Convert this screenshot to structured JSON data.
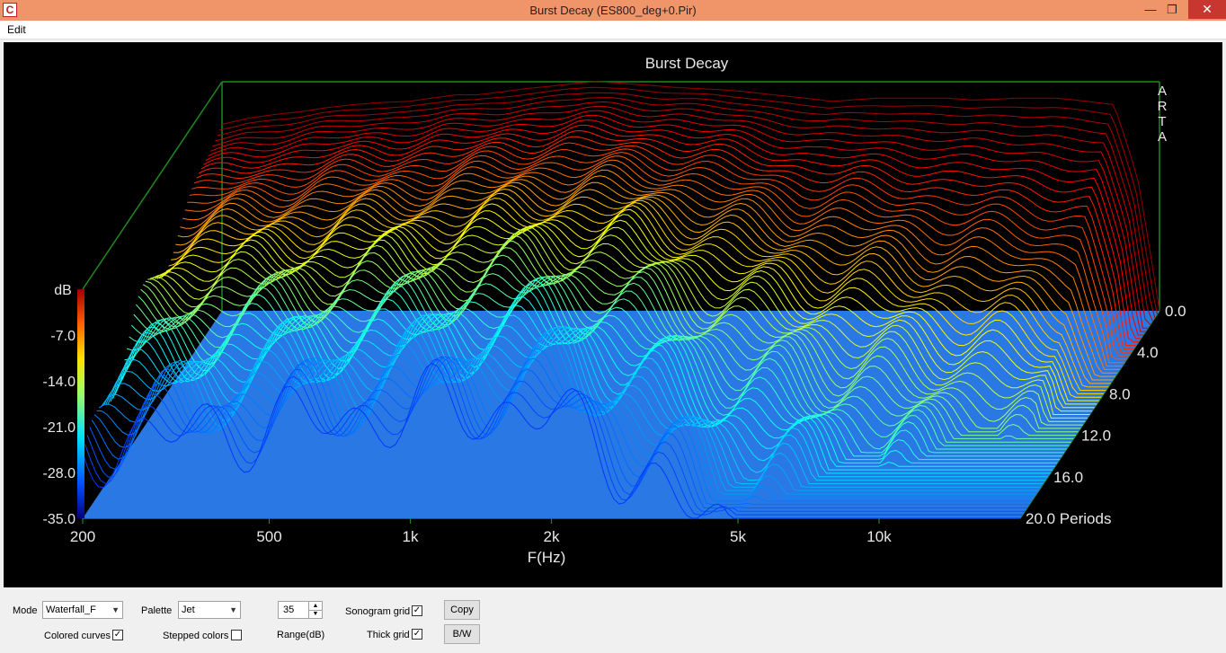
{
  "window": {
    "title": "Burst Decay  (ES800_deg+0.Pir)",
    "app_icon": "arta-app-icon"
  },
  "menu": {
    "items": [
      {
        "label": "Edit"
      }
    ]
  },
  "chart_data": {
    "type": "waterfall",
    "title": "Burst Decay",
    "watermark": [
      "A",
      "R",
      "T",
      "A"
    ],
    "xlabel": "F(Hz)",
    "ylabel": "dB",
    "zlabel_unit": "Periods",
    "x_scale": "log",
    "x_range": [
      200,
      20000
    ],
    "x_ticks": [
      "200",
      "500",
      "1k",
      "2k",
      "5k",
      "10k"
    ],
    "x_tick_values": [
      200,
      500,
      1000,
      2000,
      5000,
      10000
    ],
    "y_range": [
      -35,
      0
    ],
    "y_ticks": [
      "-7.0",
      "-14.0",
      "-21.0",
      "-28.0",
      "-35.0"
    ],
    "y_tick_values": [
      -7,
      -14,
      -21,
      -28,
      -35
    ],
    "z_range": [
      0,
      20
    ],
    "z_ticks": [
      "0.0",
      "4.0",
      "8.0",
      "12.0",
      "16.0",
      "20.0 Periods"
    ],
    "z_tick_values": [
      0,
      4,
      8,
      12,
      16,
      20
    ],
    "palette": "Jet",
    "colors": {
      "background": "#000000",
      "box": "#1e8a1e",
      "floor": "#2a78e4",
      "text": "#e8e8e8"
    },
    "front_response": {
      "freq": [
        200,
        230,
        260,
        300,
        330,
        380,
        430,
        500,
        560,
        630,
        700,
        800,
        900,
        1000,
        1120,
        1250,
        1400,
        1600,
        1800,
        2000,
        2300,
        2600,
        3000,
        3500,
        4000,
        5000,
        6000,
        7000,
        8000,
        10000,
        12000,
        14000,
        16000,
        18000,
        20000
      ],
      "db": [
        -6.5,
        -5.5,
        -5,
        -4.5,
        -4,
        -3.5,
        -3.2,
        -3,
        -2.5,
        -2,
        -2,
        -1.5,
        -1,
        -0.7,
        -0.3,
        0,
        -0.2,
        -0.5,
        -0.8,
        -1,
        -1.2,
        -1.5,
        -2,
        -2.5,
        -3,
        -2.5,
        -2.5,
        -2.5,
        -2.8,
        -2.5,
        -2.5,
        -3,
        -3.5,
        -15,
        -35
      ]
    }
  },
  "controls": {
    "mode_label": "Mode",
    "mode_value": "Waterfall_F",
    "palette_label": "Palette",
    "palette_value": "Jet",
    "range_value": "35",
    "range_label": "Range(dB)",
    "sonogram_grid_label": "Sonogram grid",
    "sonogram_grid_checked": "✓",
    "thick_grid_label": "Thick grid",
    "thick_grid_checked": "✓",
    "colored_curves_label": "Colored curves",
    "colored_curves_checked": "✓",
    "stepped_colors_label": "Stepped colors",
    "stepped_colors_checked": "",
    "copy_label": "Copy",
    "bw_label": "B/W"
  }
}
